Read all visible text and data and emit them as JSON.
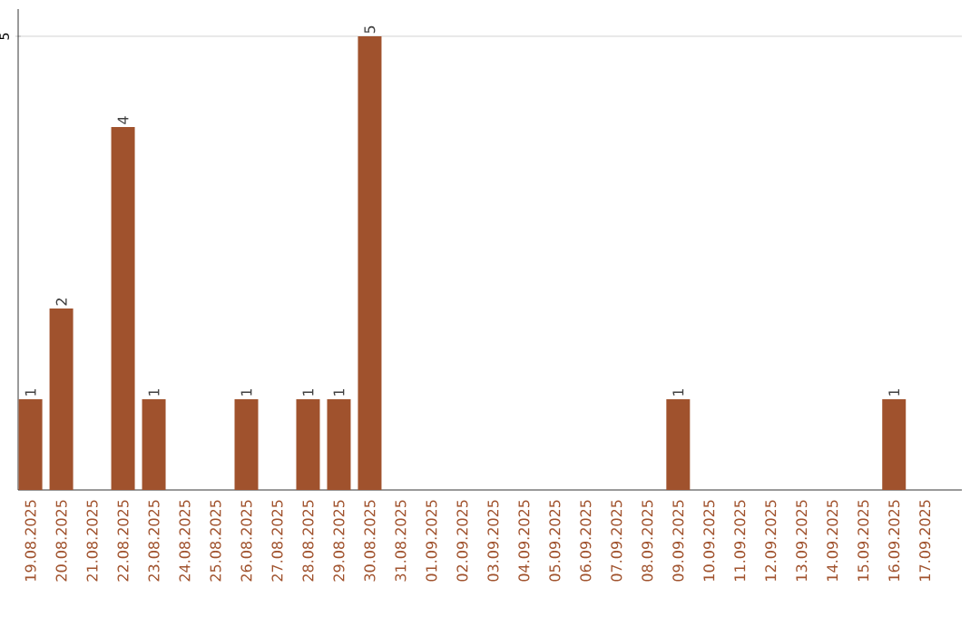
{
  "chart_data": {
    "type": "bar",
    "categories": [
      "19.08.2025",
      "20.08.2025",
      "21.08.2025",
      "22.08.2025",
      "23.08.2025",
      "24.08.2025",
      "25.08.2025",
      "26.08.2025",
      "27.08.2025",
      "28.08.2025",
      "29.08.2025",
      "30.08.2025",
      "31.08.2025",
      "01.09.2025",
      "02.09.2025",
      "03.09.2025",
      "04.09.2025",
      "05.09.2025",
      "06.09.2025",
      "07.09.2025",
      "08.09.2025",
      "09.09.2025",
      "10.09.2025",
      "11.09.2025",
      "12.09.2025",
      "13.09.2025",
      "14.09.2025",
      "15.09.2025",
      "16.09.2025",
      "17.09.2025"
    ],
    "values": [
      1,
      2,
      0,
      4,
      1,
      0,
      0,
      1,
      0,
      1,
      1,
      5,
      0,
      0,
      0,
      0,
      0,
      0,
      0,
      0,
      0,
      1,
      0,
      0,
      0,
      0,
      0,
      0,
      1,
      0
    ],
    "value_labels": [
      "1",
      "2",
      null,
      "4",
      "1",
      null,
      null,
      "1",
      null,
      "1",
      "1",
      "5",
      null,
      null,
      null,
      null,
      null,
      null,
      null,
      null,
      null,
      "1",
      null,
      null,
      null,
      null,
      null,
      null,
      "1",
      null
    ],
    "color": "#a0522d",
    "ylim": [
      0,
      5.3
    ],
    "yticks": [
      5
    ],
    "grid": "y"
  }
}
